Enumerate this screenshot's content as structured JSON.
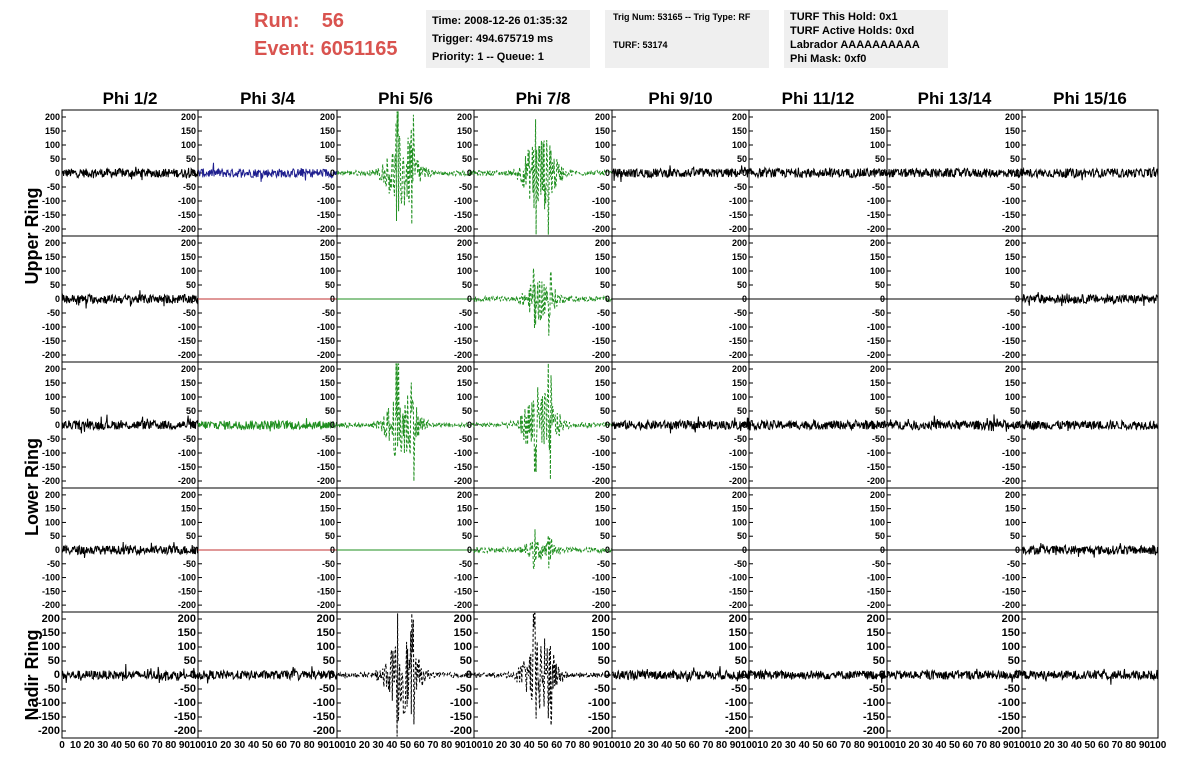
{
  "header": {
    "run_label": "Run:",
    "run_value": "56",
    "event_label": "Event:",
    "event_value": "6051165",
    "info_a": [
      "Time: 2008-12-26 01:35:32",
      "Trigger: 494.675719 ms",
      "Priority: 1 -- Queue: 1"
    ],
    "info_b": [
      "Trig Num: 53165 -- Trig Type: RF",
      "TURF: 53174"
    ],
    "info_c": [
      "TURF This Hold: 0x1",
      "TURF Active Holds: 0xd",
      "Labrador AAAAAAAAAA",
      "Phi Mask: 0xf0"
    ]
  },
  "chart_data": {
    "type": "line",
    "columns": [
      "Phi 1/2",
      "Phi 3/4",
      "Phi 5/6",
      "Phi 7/8",
      "Phi 9/10",
      "Phi 11/12",
      "Phi 13/14",
      "Phi 15/16"
    ],
    "row_groups": [
      {
        "label": "Upper Ring",
        "rows": [
          0,
          1
        ]
      },
      {
        "label": "Lower Ring",
        "rows": [
          2,
          3
        ]
      },
      {
        "label": "Nadir Ring",
        "rows": [
          4
        ]
      }
    ],
    "ylim": [
      -225,
      225
    ],
    "y_ticks_upper_lower": [
      200,
      150,
      100,
      50,
      0,
      -50,
      -100,
      -150,
      -200
    ],
    "y_ticks_nadir": [
      200,
      150,
      100,
      50,
      0,
      -50,
      -100,
      -150,
      -200
    ],
    "xlim": [
      0,
      100
    ],
    "x_ticks_first": [
      "0",
      "10",
      "20",
      "30",
      "40",
      "50",
      "60",
      "70",
      "80",
      "90",
      "100"
    ],
    "x_ticks_other": [
      "10",
      "20",
      "30",
      "40",
      "50",
      "60",
      "70",
      "80",
      "90",
      "100"
    ],
    "x_ticks_last": [
      "10",
      "20",
      "30",
      "40",
      "50",
      "60",
      "70",
      "80",
      "90",
      "100"
    ],
    "colors": {
      "black": "#000000",
      "blue": "#1f1f8f",
      "green": "#1f8f1f",
      "red": "#c03030"
    },
    "panels": [
      [
        "noise-black",
        "noise-blue",
        "burst-green-dash",
        "burst-green-dash",
        "noise-black",
        "noise-black",
        "noise-black",
        "noise-black"
      ],
      [
        "noise-black",
        "flat-red",
        "flat-green",
        "burst-green-dash-small",
        "flat-black",
        "flat-black",
        "flat-black",
        "noise-black"
      ],
      [
        "noise-black",
        "noise-green",
        "burst-green-dash",
        "burst-green-dash",
        "noise-black",
        "noise-black",
        "noise-black",
        "noise-black"
      ],
      [
        "noise-black",
        "flat-red",
        "flat-green",
        "burst-green-dash-tiny",
        "flat-black",
        "flat-black",
        "flat-black",
        "noise-black"
      ],
      [
        "noise-black",
        "noise-black",
        "burst-black-dash",
        "burst-black-dash",
        "noise-black",
        "noise-black",
        "noise-black",
        "noise-black"
      ]
    ]
  }
}
